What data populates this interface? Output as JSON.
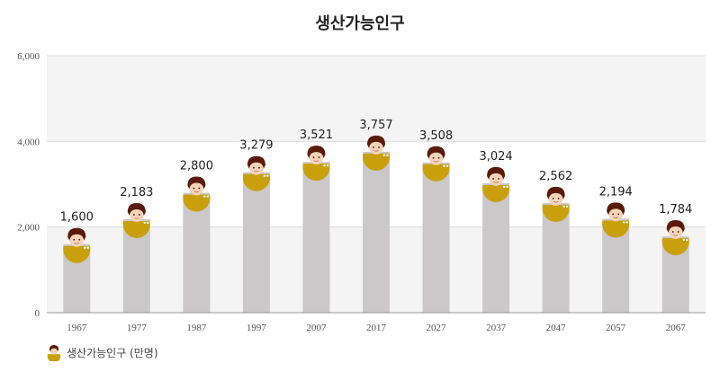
{
  "chart_data": {
    "type": "bar",
    "title": "생산가능인구",
    "xlabel": "",
    "ylabel": "",
    "categories": [
      "1967",
      "1977",
      "1987",
      "1997",
      "2007",
      "2017",
      "2027",
      "2037",
      "2047",
      "2057",
      "2067"
    ],
    "series": [
      {
        "name": "생산가능인구 (만명)",
        "values": [
          1600,
          2183,
          2800,
          3279,
          3521,
          3757,
          3508,
          3024,
          2562,
          2194,
          1784
        ]
      }
    ],
    "value_labels": [
      "1,600",
      "2,183",
      "2,800",
      "3,279",
      "3,521",
      "3,757",
      "3,508",
      "3,024",
      "2,562",
      "2,194",
      "1,784"
    ],
    "ylim": [
      0,
      6000
    ],
    "yticks": [
      0,
      2000,
      4000,
      6000
    ],
    "ytick_labels": [
      "0",
      "2,000",
      "4,000",
      "6,000"
    ],
    "grid": true,
    "legend_position": "bottom-left",
    "colors": {
      "bar": "#cbc8c9",
      "icon_body": "#c9a00c",
      "hair": "#5a1a0a",
      "skin": "#f6d3b8",
      "plot_bg": "#f4f4f4",
      "band_bg": "#ffffff"
    }
  },
  "legend": {
    "label": "생산가능인구 (만명)",
    "icon": "person-icon"
  }
}
